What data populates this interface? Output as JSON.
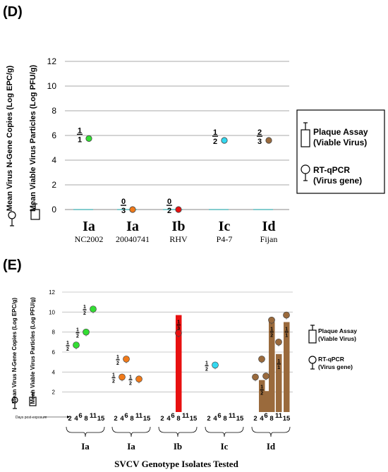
{
  "chart_data": [
    {
      "panel": "(D)",
      "type": "scatter",
      "y_axis_labels": [
        "Mean Virus N-Gene Copies  (Log EPC/g)",
        "Mean Viable Virus Particles  (Log PFU/g)"
      ],
      "ylim": [
        0,
        12
      ],
      "yticks": [
        "0",
        "2",
        "4",
        "6",
        "8",
        "10",
        "12"
      ],
      "grid": true,
      "categories": [
        {
          "label": "Ia",
          "sub": "NC2002"
        },
        {
          "label": "Ia",
          "sub": "20040741"
        },
        {
          "label": "Ib",
          "sub": "RHV"
        },
        {
          "label": "Ic",
          "sub": "P4-7"
        },
        {
          "label": "Id",
          "sub": "Fijan"
        }
      ],
      "points": [
        {
          "category": 0,
          "y": 5.75,
          "color": "#33dd33",
          "num": "1",
          "den": "1"
        },
        {
          "category": 1,
          "y": 0.0,
          "color": "#f07a1a",
          "num": "0",
          "den": "3"
        },
        {
          "category": 2,
          "y": 0.0,
          "color": "#e81010",
          "num": "0",
          "den": "2"
        },
        {
          "category": 3,
          "y": 5.6,
          "color": "#33d8f0",
          "num": "1",
          "den": "2"
        },
        {
          "category": 4,
          "y": 5.6,
          "color": "#9a6a3c",
          "num": "2",
          "den": "3"
        }
      ],
      "legend": {
        "placement": "right",
        "items": [
          {
            "symbol": "bar",
            "line1": "Plaque Assay",
            "line2": "(Viable Virus)"
          },
          {
            "symbol": "circle",
            "line1": "RT-qPCR",
            "line2": "(Virus gene)"
          }
        ]
      }
    },
    {
      "panel": "(E)",
      "type": "scatter",
      "y_axis_labels": [
        "Mean Virus N-Gene Copies  (Log EPC/g)",
        "Mean Viable Virus Particles  (Log PFU/g)"
      ],
      "ylim": [
        0,
        12
      ],
      "yticks": [
        "2",
        "4",
        "6",
        "8",
        "10",
        "12"
      ],
      "grid": true,
      "days_caption": "Days post-exposure",
      "xlabel": "SVCV Genotype Isolates Tested",
      "day_ticks": [
        "2",
        "4",
        "6",
        "8",
        "11",
        "15"
      ],
      "groups": [
        {
          "label": "Ia",
          "color": "#33dd33"
        },
        {
          "label": "Ia",
          "color": "#f07a1a"
        },
        {
          "label": "Ib",
          "color": "#e81010"
        },
        {
          "label": "Ic",
          "color": "#33d8f0"
        },
        {
          "label": "Id",
          "color": "#9a6a3c"
        }
      ],
      "points": [
        {
          "group": 0,
          "day": 4,
          "y": 6.7,
          "num": "1",
          "den": "2"
        },
        {
          "group": 0,
          "day": 8,
          "y": 8.0,
          "num": "1",
          "den": "2"
        },
        {
          "group": 0,
          "day": 11,
          "y": 10.3,
          "num": "1",
          "den": "2"
        },
        {
          "group": 1,
          "day": 4,
          "y": 3.5,
          "num": "1",
          "den": "2"
        },
        {
          "group": 1,
          "day": 6,
          "y": 5.3,
          "num": "1",
          "den": "2"
        },
        {
          "group": 1,
          "day": 11,
          "y": 3.3,
          "num": "1",
          "den": "2"
        },
        {
          "group": 2,
          "day": 8,
          "y": 7.9,
          "num": "",
          "den": ""
        },
        {
          "group": 3,
          "day": 4,
          "y": 4.7,
          "num": "1",
          "den": "2"
        },
        {
          "group": 4,
          "day": 2,
          "y": 3.5,
          "num": "",
          "den": ""
        },
        {
          "group": 4,
          "day": 4,
          "y": 5.3,
          "num": "",
          "den": ""
        },
        {
          "group": 4,
          "day": 6,
          "y": 3.6,
          "num": "",
          "den": ""
        },
        {
          "group": 4,
          "day": 8,
          "y": 9.2,
          "num": "",
          "den": ""
        },
        {
          "group": 4,
          "day": 11,
          "y": 7.0,
          "num": "",
          "den": ""
        },
        {
          "group": 4,
          "day": 15,
          "y": 9.7,
          "num": "",
          "den": ""
        }
      ],
      "bars": [
        {
          "group": 2,
          "day": 8,
          "y": 9.7,
          "num": "1",
          "den": "3"
        },
        {
          "group": 4,
          "day": 4,
          "y": 3.2,
          "num": "1",
          "den": "2"
        },
        {
          "group": 4,
          "day": 6,
          "y": 2.1,
          "num": "",
          "den": ""
        },
        {
          "group": 4,
          "day": 8,
          "y": 9.0,
          "num": "1",
          "den": "2"
        },
        {
          "group": 4,
          "day": 11,
          "y": 5.8,
          "num": "1",
          "den": "1"
        },
        {
          "group": 4,
          "day": 15,
          "y": 9.0,
          "num": "1",
          "den": "1"
        }
      ],
      "legend": {
        "placement": "right",
        "items": [
          {
            "symbol": "bar",
            "line1": "Plaque Assay",
            "line2": "(Viable Virus)"
          },
          {
            "symbol": "circle",
            "line1": "RT-qPCR",
            "line2": "(Virus gene)"
          }
        ]
      }
    }
  ]
}
